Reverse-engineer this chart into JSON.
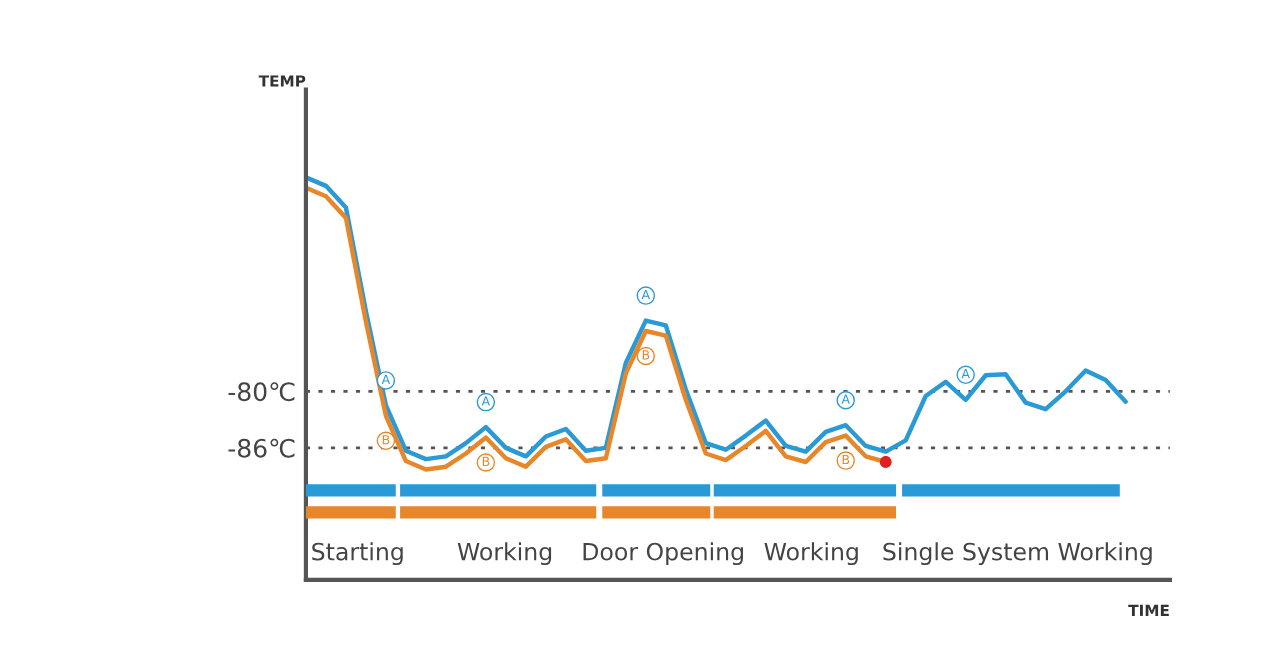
{
  "chart_data": [
    {
      "type": "line",
      "xlabel": "TIME",
      "ylabel": "TEMP",
      "categories": [
        null,
        null,
        null,
        null,
        null,
        null,
        null,
        null,
        null,
        null,
        null,
        null,
        null,
        null,
        null,
        null,
        null,
        null,
        null,
        null,
        null,
        null,
        null,
        null,
        null,
        null,
        null,
        null,
        null,
        null,
        null,
        null,
        null,
        null,
        null,
        null,
        null,
        null,
        null,
        null,
        null,
        null
      ],
      "series": [
        {
          "name": "A",
          "color": "#2a9ad6",
          "values": [
            -57.3,
            -58.2,
            -60.5,
            -71.5,
            -81.5,
            -86.3,
            -87.2,
            -86.9,
            -85.5,
            -83.8,
            -86.0,
            -86.9,
            -84.8,
            -84.0,
            -86.3,
            -86.0,
            -77.0,
            -72.5,
            -73.0,
            -79.8,
            -85.5,
            -86.2,
            -84.7,
            -83.1,
            -85.8,
            -86.4,
            -84.3,
            -83.6,
            -85.8,
            -86.4,
            -85.2,
            -80.5,
            -79.0,
            -80.9,
            -78.3,
            -78.2,
            -81.2,
            -81.9,
            -80.0,
            -77.8,
            -78.8,
            -81.1
          ]
        },
        {
          "name": "B",
          "color": "#e8862a",
          "values": [
            -58.4,
            -59.3,
            -61.6,
            -72.6,
            -82.6,
            -87.4,
            -88.3,
            -88.0,
            -86.6,
            -84.9,
            -87.1,
            -88.0,
            -85.9,
            -85.1,
            -87.4,
            -87.1,
            -78.1,
            -73.6,
            -74.1,
            -80.9,
            -86.6,
            -87.3,
            -85.8,
            -84.2,
            -86.9,
            -87.5,
            -85.4,
            -84.7,
            -86.9,
            -87.5,
            null,
            null,
            null,
            null,
            null,
            null,
            null,
            null,
            null,
            null,
            null,
            null
          ]
        },
        {
          "type": "scatter",
          "color": "#e02020",
          "values": [
            null,
            null,
            null,
            null,
            null,
            null,
            null,
            null,
            null,
            null,
            null,
            null,
            null,
            null,
            null,
            null,
            null,
            null,
            null,
            null,
            null,
            null,
            null,
            null,
            null,
            null,
            null,
            null,
            null,
            -87.5,
            null,
            null,
            null,
            null,
            null,
            null,
            null,
            null,
            null,
            null,
            null,
            null
          ]
        }
      ],
      "ylim": [
        -100,
        -48
      ],
      "yticks": [
        {
          "value": -80,
          "label": "-80℃"
        },
        {
          "value": -86,
          "label": "-86℃"
        }
      ],
      "grid": "y",
      "line_style": "solid"
    },
    {
      "type": "other",
      "colors": [
        "#2a9ad6",
        "#e8862a"
      ],
      "annotations": [
        "Starting",
        "Working",
        "Door Opening",
        "Working",
        "Single System Working"
      ]
    }
  ]
}
